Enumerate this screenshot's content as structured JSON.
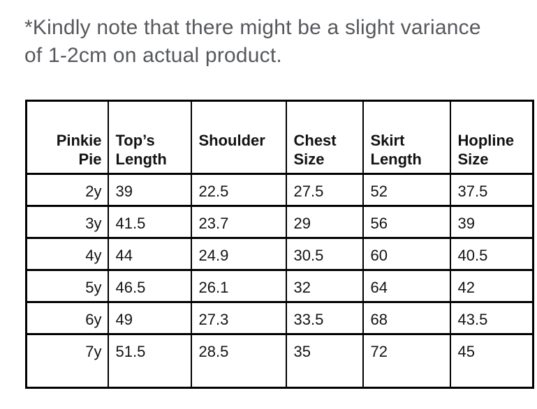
{
  "note": {
    "text": "*Kindly note that there might be a slight variance\nof 1-2cm on actual product."
  },
  "table": {
    "columns": [
      "Pinkie\nPie",
      "Top’s\nLength",
      "Shoulder",
      "Chest\nSize",
      "Skirt\nLength",
      "Hopline\nSize"
    ],
    "rows": [
      [
        "2y",
        "39",
        "22.5",
        "27.5",
        "52",
        "37.5"
      ],
      [
        "3y",
        "41.5",
        "23.7",
        "29",
        "56",
        "39"
      ],
      [
        "4y",
        "44",
        "24.9",
        "30.5",
        "60",
        "40.5"
      ],
      [
        "5y",
        "46.5",
        "26.1",
        "32",
        "64",
        "42"
      ],
      [
        "6y",
        "49",
        "27.3",
        "33.5",
        "68",
        "43.5"
      ],
      [
        "7y",
        "51.5",
        "28.5",
        "35",
        "72",
        "45"
      ]
    ]
  },
  "chart_data": {
    "type": "table",
    "columns": [
      "Pinkie Pie",
      "Top’s Length",
      "Shoulder",
      "Chest Size",
      "Skirt Length",
      "Hopline Size"
    ],
    "rows": [
      [
        "2y",
        39,
        22.5,
        27.5,
        52,
        37.5
      ],
      [
        "3y",
        41.5,
        23.7,
        29,
        56,
        39
      ],
      [
        "4y",
        44,
        24.9,
        30.5,
        60,
        40.5
      ],
      [
        "5y",
        46.5,
        26.1,
        32,
        64,
        42
      ],
      [
        "6y",
        49,
        27.3,
        33.5,
        68,
        43.5
      ],
      [
        "7y",
        51.5,
        28.5,
        35,
        72,
        45
      ]
    ],
    "note": "*Kindly note that there might be a slight variance of 1-2cm on actual product."
  },
  "colors": {
    "background": "#ffffff",
    "note_text": "#56585c",
    "table_text": "#131313",
    "border": "#000000"
  }
}
